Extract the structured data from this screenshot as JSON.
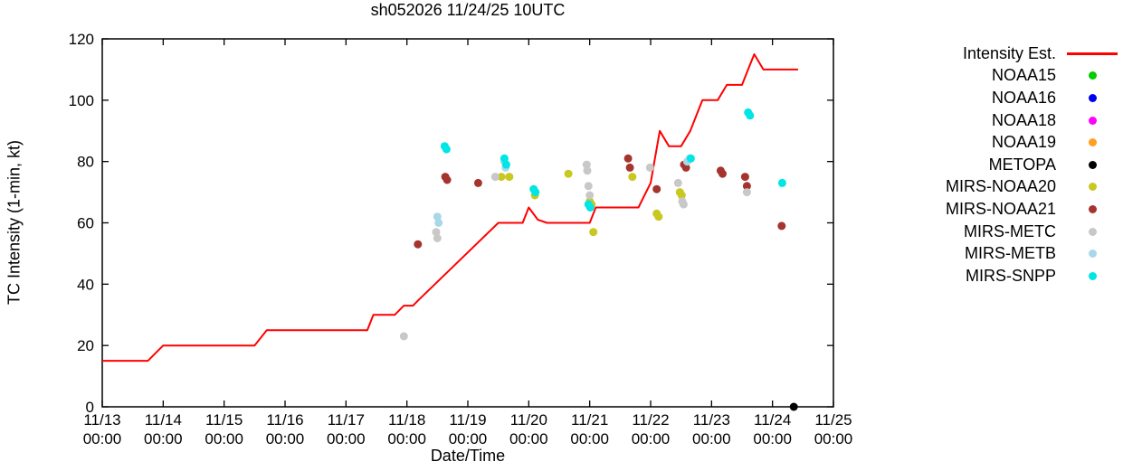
{
  "title": "sh052026 11/24/25 10UTC",
  "chart_data": {
    "type": "line",
    "title": "sh052026 11/24/25 10UTC",
    "xlabel": "Date/Time",
    "ylabel": "TC Intensity (1-min, kt)",
    "ylim": [
      0,
      120
    ],
    "yticks": [
      0,
      20,
      40,
      60,
      80,
      100,
      120
    ],
    "x_unit": "days since 11/13 00:00 UTC",
    "x_axis": {
      "span_days": 12,
      "tick_labels": [
        {
          "date": "11/13",
          "time": "00:00"
        },
        {
          "date": "11/14",
          "time": "00:00"
        },
        {
          "date": "11/15",
          "time": "00:00"
        },
        {
          "date": "11/16",
          "time": "00:00"
        },
        {
          "date": "11/17",
          "time": "00:00"
        },
        {
          "date": "11/18",
          "time": "00:00"
        },
        {
          "date": "11/19",
          "time": "00:00"
        },
        {
          "date": "11/20",
          "time": "00:00"
        },
        {
          "date": "11/21",
          "time": "00:00"
        },
        {
          "date": "11/22",
          "time": "00:00"
        },
        {
          "date": "11/23",
          "time": "00:00"
        },
        {
          "date": "11/24",
          "time": "00:00"
        },
        {
          "date": "11/25",
          "time": "00:00"
        }
      ]
    },
    "legend_position": "right-outside",
    "grid": false,
    "series": [
      {
        "name": "Intensity Est.",
        "type": "line",
        "color": "#ff0000",
        "points": [
          [
            0,
            15
          ],
          [
            0.75,
            15
          ],
          [
            1.0,
            20
          ],
          [
            2.5,
            20
          ],
          [
            2.7,
            25
          ],
          [
            4.35,
            25
          ],
          [
            4.45,
            30
          ],
          [
            4.8,
            30
          ],
          [
            4.95,
            33
          ],
          [
            5.1,
            33
          ],
          [
            5.2,
            35
          ],
          [
            6.5,
            60
          ],
          [
            6.9,
            60
          ],
          [
            7.0,
            65
          ],
          [
            7.15,
            61
          ],
          [
            7.3,
            60
          ],
          [
            8.0,
            60
          ],
          [
            8.1,
            65
          ],
          [
            8.8,
            65
          ],
          [
            9.0,
            73
          ],
          [
            9.15,
            90
          ],
          [
            9.3,
            85
          ],
          [
            9.5,
            85
          ],
          [
            9.65,
            90
          ],
          [
            9.85,
            100
          ],
          [
            10.1,
            100
          ],
          [
            10.25,
            105
          ],
          [
            10.5,
            105
          ],
          [
            10.6,
            110
          ],
          [
            10.7,
            115
          ],
          [
            10.85,
            110
          ],
          [
            11.42,
            110
          ]
        ]
      },
      {
        "name": "NOAA15",
        "type": "scatter",
        "color": "#00cc00",
        "points": []
      },
      {
        "name": "NOAA16",
        "type": "scatter",
        "color": "#0000ee",
        "points": []
      },
      {
        "name": "NOAA18",
        "type": "scatter",
        "color": "#ff00ff",
        "points": []
      },
      {
        "name": "NOAA19",
        "type": "scatter",
        "color": "#ffa020",
        "points": []
      },
      {
        "name": "METOPA",
        "type": "scatter",
        "color": "#000000",
        "points": [
          [
            11.35,
            0
          ]
        ]
      },
      {
        "name": "MIRS-NOAA20",
        "type": "scatter",
        "color": "#c8c820",
        "points": [
          [
            6.55,
            75
          ],
          [
            6.68,
            75
          ],
          [
            7.1,
            69
          ],
          [
            7.65,
            76
          ],
          [
            8.0,
            67
          ],
          [
            8.03,
            66
          ],
          [
            8.06,
            57
          ],
          [
            8.7,
            75
          ],
          [
            9.1,
            63
          ],
          [
            9.13,
            62
          ],
          [
            9.48,
            70
          ],
          [
            9.51,
            69
          ]
        ]
      },
      {
        "name": "MIRS-NOAA21",
        "type": "scatter",
        "color": "#a5342e",
        "points": [
          [
            5.18,
            53
          ],
          [
            5.63,
            75
          ],
          [
            5.66,
            74
          ],
          [
            6.17,
            73
          ],
          [
            8.63,
            81
          ],
          [
            8.66,
            78
          ],
          [
            9.1,
            71
          ],
          [
            9.55,
            79
          ],
          [
            9.58,
            78
          ],
          [
            10.15,
            77
          ],
          [
            10.18,
            76
          ],
          [
            10.55,
            75
          ],
          [
            10.58,
            72
          ],
          [
            11.15,
            59
          ]
        ]
      },
      {
        "name": "MIRS-METC",
        "type": "scatter",
        "color": "#c8c8c8",
        "points": [
          [
            4.95,
            23
          ],
          [
            5.48,
            57
          ],
          [
            5.5,
            55
          ],
          [
            6.45,
            75
          ],
          [
            7.95,
            79
          ],
          [
            7.96,
            77
          ],
          [
            7.98,
            72
          ],
          [
            8.0,
            69
          ],
          [
            8.99,
            78
          ],
          [
            9.45,
            73
          ],
          [
            9.52,
            67
          ],
          [
            9.54,
            66
          ],
          [
            10.58,
            70
          ]
        ]
      },
      {
        "name": "MIRS-METB",
        "type": "scatter",
        "color": "#a8d8e8",
        "points": [
          [
            5.5,
            62
          ],
          [
            5.52,
            60
          ],
          [
            6.6,
            80
          ],
          [
            6.62,
            78
          ],
          [
            9.6,
            80
          ],
          [
            9.64,
            81
          ]
        ]
      },
      {
        "name": "MIRS-SNPP",
        "type": "scatter",
        "color": "#00e5e5",
        "points": [
          [
            5.62,
            85
          ],
          [
            5.65,
            84
          ],
          [
            6.6,
            81
          ],
          [
            6.63,
            79
          ],
          [
            7.08,
            71
          ],
          [
            7.11,
            70
          ],
          [
            7.98,
            66
          ],
          [
            8.01,
            65
          ],
          [
            9.66,
            81
          ],
          [
            10.6,
            96
          ],
          [
            10.63,
            95
          ],
          [
            11.16,
            73
          ]
        ]
      }
    ]
  }
}
